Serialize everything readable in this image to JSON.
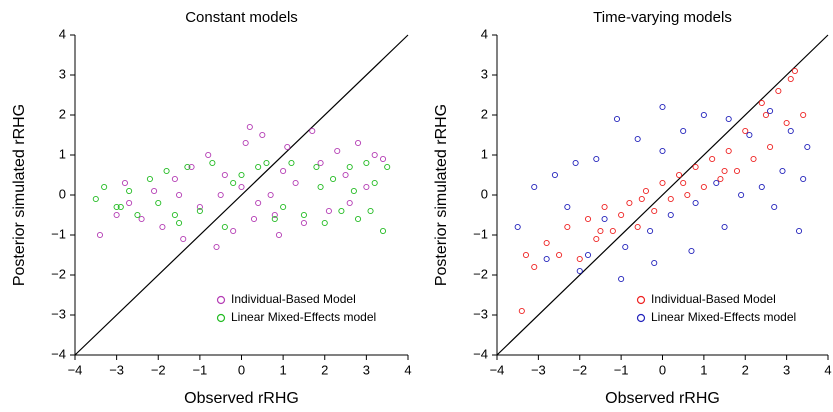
{
  "chart_data": [
    {
      "type": "scatter",
      "title": "Constant models",
      "x_label": "Observed rRHG",
      "y_label": "Posterior simulated rRHG",
      "xlim": [
        -4,
        4
      ],
      "ylim": [
        -4,
        4
      ],
      "xticks": [
        {
          "value": -4,
          "label": "−4"
        },
        {
          "value": -3,
          "label": "−3"
        },
        {
          "value": -2,
          "label": "−2"
        },
        {
          "value": -1,
          "label": "−1"
        },
        0,
        1,
        2,
        3,
        4
      ],
      "yticks": [
        {
          "value": -4,
          "label": "−4"
        },
        {
          "value": -3,
          "label": "−3"
        },
        {
          "value": -2,
          "label": "−2"
        },
        {
          "value": -1,
          "label": "−1"
        },
        0,
        1,
        2,
        3,
        4
      ],
      "legend_position": "lower right",
      "series": [
        {
          "name": "Individual-Based Model",
          "color": "#b43cb4",
          "x": [
            -3.4,
            -3.0,
            -2.7,
            -2.4,
            -2.1,
            -1.9,
            -1.6,
            -1.4,
            -1.2,
            -1.0,
            -0.8,
            -0.6,
            -0.4,
            -0.2,
            0.0,
            0.1,
            0.3,
            0.5,
            0.7,
            0.9,
            1.1,
            1.3,
            1.5,
            1.7,
            1.9,
            2.1,
            2.3,
            2.5,
            2.8,
            3.0,
            3.2,
            3.4,
            -0.5,
            0.4,
            1.0,
            -1.5,
            0.2,
            0.8,
            2.6,
            -2.8
          ],
          "values": [
            -1.0,
            -0.5,
            -0.2,
            -0.6,
            0.1,
            -0.8,
            0.4,
            -1.1,
            0.7,
            -0.3,
            1.0,
            -1.3,
            0.5,
            -0.9,
            0.2,
            1.3,
            -0.6,
            1.5,
            0.0,
            -1.0,
            1.2,
            0.3,
            -0.7,
            1.6,
            0.8,
            -0.4,
            1.1,
            0.5,
            1.3,
            0.2,
            1.0,
            0.9,
            0.0,
            -0.2,
            0.6,
            0.0,
            1.7,
            -0.5,
            -0.2,
            0.3
          ]
        },
        {
          "name": "Linear Mixed-Effects model",
          "color": "#22bb22",
          "x": [
            -3.5,
            -3.3,
            -3.0,
            -2.7,
            -2.5,
            -2.2,
            -2.0,
            -1.8,
            -1.5,
            -1.3,
            -1.0,
            -0.7,
            -0.4,
            0.0,
            0.4,
            0.8,
            1.2,
            1.5,
            1.8,
            2.0,
            2.2,
            2.4,
            2.6,
            2.8,
            3.0,
            3.2,
            3.4,
            3.5,
            -2.9,
            -1.6,
            0.6,
            1.9,
            2.7,
            3.1,
            -0.2,
            1.0
          ],
          "values": [
            -0.1,
            0.2,
            -0.3,
            0.1,
            -0.5,
            0.4,
            -0.2,
            0.6,
            -0.7,
            0.7,
            -0.4,
            0.8,
            -0.8,
            0.5,
            0.7,
            -0.6,
            0.8,
            -0.5,
            0.7,
            -0.7,
            0.4,
            -0.4,
            0.7,
            -0.6,
            0.8,
            0.3,
            -0.9,
            0.7,
            -0.3,
            -0.5,
            0.8,
            0.2,
            0.1,
            -0.4,
            0.3,
            -0.3
          ]
        }
      ]
    },
    {
      "type": "scatter",
      "title": "Time-varying models",
      "x_label": "Observed rRHG",
      "y_label": "Posterior simulated rRHG",
      "xlim": [
        -4,
        4
      ],
      "ylim": [
        -4,
        4
      ],
      "xticks": [
        {
          "value": -4,
          "label": "−4"
        },
        {
          "value": -3,
          "label": "−3"
        },
        {
          "value": -2,
          "label": "−2"
        },
        {
          "value": -1,
          "label": "−1"
        },
        0,
        1,
        2,
        3,
        4
      ],
      "yticks": [
        {
          "value": -4,
          "label": "−4"
        },
        {
          "value": -3,
          "label": "−3"
        },
        {
          "value": -2,
          "label": "−2"
        },
        {
          "value": -1,
          "label": "−1"
        },
        0,
        1,
        2,
        3,
        4
      ],
      "legend_position": "lower right",
      "series": [
        {
          "name": "Individual-Based Model",
          "color": "#ee2222",
          "x": [
            -3.4,
            -3.3,
            -3.1,
            -2.8,
            -2.5,
            -2.3,
            -2.0,
            -1.8,
            -1.6,
            -1.4,
            -1.2,
            -1.0,
            -0.8,
            -0.6,
            -0.4,
            -0.2,
            0.0,
            0.2,
            0.4,
            0.6,
            0.8,
            1.0,
            1.2,
            1.4,
            1.6,
            1.8,
            2.0,
            2.2,
            2.4,
            2.6,
            2.8,
            3.0,
            3.2,
            3.4,
            -1.5,
            0.5,
            1.5,
            2.5,
            -0.5,
            3.1
          ],
          "values": [
            -2.9,
            -1.5,
            -1.8,
            -1.2,
            -1.5,
            -0.8,
            -1.6,
            -0.6,
            -1.1,
            -0.3,
            -0.9,
            -0.5,
            -0.2,
            -0.8,
            0.1,
            -0.4,
            0.3,
            -0.1,
            0.5,
            0.0,
            0.7,
            0.2,
            0.9,
            0.4,
            1.1,
            0.6,
            1.6,
            0.9,
            2.3,
            1.2,
            2.6,
            1.8,
            3.1,
            2.0,
            -0.9,
            0.3,
            0.6,
            2.0,
            -0.1,
            2.9
          ]
        },
        {
          "name": "Linear Mixed-Effects model",
          "color": "#2222bb",
          "x": [
            -3.5,
            -3.1,
            -2.8,
            -2.6,
            -2.3,
            -2.1,
            -1.8,
            -1.6,
            -1.4,
            -1.1,
            -0.9,
            -0.6,
            -0.3,
            0.0,
            0.2,
            0.5,
            0.8,
            1.0,
            1.3,
            1.6,
            1.9,
            2.1,
            2.4,
            2.6,
            2.9,
            3.1,
            3.3,
            3.5,
            -1.0,
            -0.2,
            0.7,
            1.5,
            2.7,
            -2.0,
            3.4,
            0.0
          ],
          "values": [
            -0.8,
            0.2,
            -1.6,
            0.5,
            -0.3,
            0.8,
            -1.5,
            0.9,
            -0.6,
            1.9,
            -1.3,
            1.4,
            -0.9,
            2.2,
            -0.5,
            1.6,
            -0.2,
            2.0,
            0.3,
            1.9,
            0.0,
            1.5,
            0.2,
            2.1,
            0.6,
            1.6,
            -0.9,
            1.2,
            -2.1,
            -1.7,
            -1.4,
            -0.8,
            -0.3,
            -1.9,
            0.4,
            1.1
          ]
        }
      ]
    }
  ]
}
